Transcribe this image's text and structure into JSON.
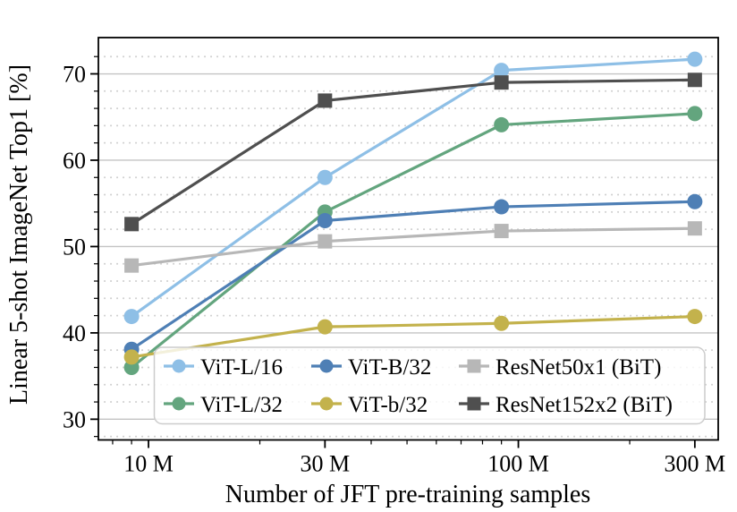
{
  "chart_data": {
    "type": "line",
    "title": "",
    "xlabel": "Number of JFT pre-training samples",
    "ylabel": "Linear 5-shot ImageNet Top1 [%]",
    "x_scale": "log",
    "x_unit": "millions of samples",
    "x": [
      9,
      30,
      90,
      300
    ],
    "x_ticks": [
      {
        "value": 10,
        "label": "10 M"
      },
      {
        "value": 30,
        "label": "30 M"
      },
      {
        "value": 100,
        "label": "100 M"
      },
      {
        "value": 300,
        "label": "300 M"
      }
    ],
    "x_minor_ticks": [
      8,
      9,
      20,
      40,
      50,
      60,
      70,
      80,
      90,
      200
    ],
    "xlim": [
      7.32,
      347
    ],
    "ylim": [
      27.6,
      74.2
    ],
    "y_ticks": [
      30,
      40,
      50,
      60,
      70
    ],
    "y_minor_ticks": [
      28,
      32,
      34,
      36,
      38,
      42,
      44,
      46,
      48,
      52,
      54,
      56,
      58,
      62,
      64,
      66,
      68,
      72
    ],
    "grid": {
      "major": "solid horizontal",
      "minor": "dotted horizontal",
      "vertical": "none"
    },
    "series": [
      {
        "name": "ViT-L/16",
        "color": "#8ebfe6",
        "marker": "circle",
        "values": [
          41.9,
          58.0,
          70.4,
          71.7
        ]
      },
      {
        "name": "ViT-L/32",
        "color": "#63a57e",
        "marker": "circle",
        "values": [
          36.0,
          54.0,
          64.1,
          65.4
        ]
      },
      {
        "name": "ViT-B/32",
        "color": "#4e7fb5",
        "marker": "circle",
        "values": [
          38.1,
          53.0,
          54.6,
          55.2
        ]
      },
      {
        "name": "ViT-b/32",
        "color": "#c3b24c",
        "marker": "circle",
        "values": [
          37.2,
          40.7,
          41.1,
          41.9
        ]
      },
      {
        "name": "ResNet50x1 (BiT)",
        "color": "#b7b7b7",
        "marker": "square",
        "values": [
          47.8,
          50.6,
          51.8,
          52.1
        ]
      },
      {
        "name": "ResNet152x2 (BiT)",
        "color": "#4f4f4f",
        "marker": "square",
        "values": [
          52.6,
          66.9,
          69.0,
          69.3
        ]
      }
    ],
    "legend": {
      "position": "lower-right-inside",
      "columns": [
        [
          0,
          1
        ],
        [
          2,
          3
        ],
        [
          4,
          5
        ]
      ]
    }
  },
  "colors": {
    "background": "#ffffff",
    "axis": "#000000",
    "grid_major": "#c3c3c3",
    "grid_minor": "#cfcfcf",
    "legend_border": "#cccccc",
    "legend_fill": "#ffffff"
  }
}
